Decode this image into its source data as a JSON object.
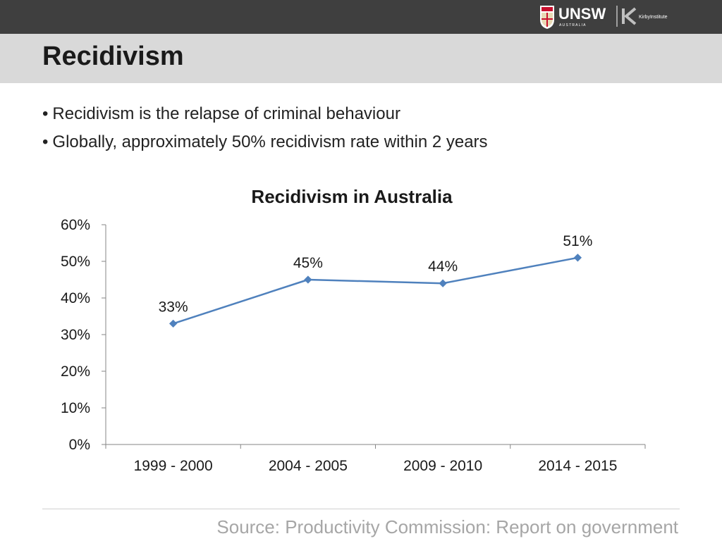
{
  "slide": {
    "title": "Recidivism",
    "bullets": [
      "Recidivism is the relapse of criminal behaviour",
      "Globally, approximately 50% recidivism rate within 2 years"
    ],
    "source": "Source: Productivity Commission: Report on government"
  },
  "logos": {
    "unsw": "UNSW",
    "unsw_sub": "A U S T R A L I A",
    "kirby": "KirbyInstitute"
  },
  "colors": {
    "header": "#3f3f3f",
    "title_band": "#d9d9d9",
    "series": "#4f81bd",
    "source_text": "#a6a6a6"
  },
  "chart_data": {
    "type": "line",
    "title": "Recidivism in Australia",
    "xlabel": "",
    "ylabel": "",
    "categories": [
      "1999 - 2000",
      "2004 - 2005",
      "2009 - 2010",
      "2014 - 2015"
    ],
    "series": [
      {
        "values": [
          33,
          45,
          44,
          51
        ]
      }
    ],
    "data_labels": [
      "33%",
      "45%",
      "44%",
      "51%"
    ],
    "ylim": [
      0,
      60
    ],
    "yticks": [
      0,
      10,
      20,
      30,
      40,
      50,
      60
    ],
    "ytick_labels": [
      "0%",
      "10%",
      "20%",
      "30%",
      "40%",
      "50%",
      "60%"
    ],
    "grid": false,
    "legend": "none"
  }
}
